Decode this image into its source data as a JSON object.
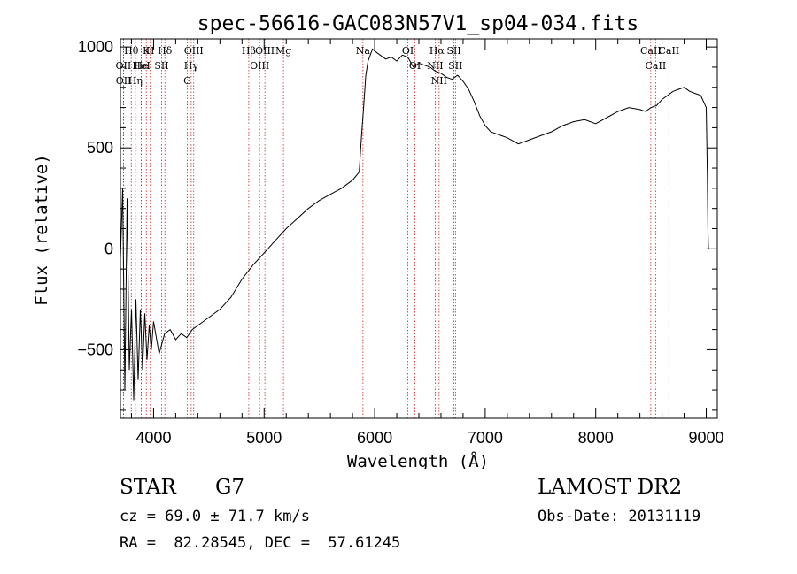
{
  "chart_data": {
    "type": "line",
    "title": "spec-56616-GAC083N57V1_sp04-034.fits",
    "xlabel": "Wavelength (Å)",
    "ylabel": "Flux (relative)",
    "xlim": [
      3700,
      9100
    ],
    "ylim": [
      -840,
      1040
    ],
    "xticks": [
      4000,
      5000,
      6000,
      7000,
      8000,
      9000
    ],
    "xtick_labels": [
      "4000",
      "5000",
      "6000",
      "7000",
      "8000",
      "9000"
    ],
    "yticks": [
      -500,
      0,
      500,
      1000
    ],
    "ytick_labels": [
      "−500",
      "0",
      "500",
      "1000"
    ],
    "grid": false,
    "series": [
      {
        "x": [
          3700,
          3720,
          3740,
          3760,
          3780,
          3800,
          3820,
          3840,
          3860,
          3880,
          3900,
          3920,
          3940,
          3960,
          3980,
          4000,
          4050,
          4100,
          4150,
          4200,
          4250,
          4300,
          4350,
          4400,
          4450,
          4500,
          4600,
          4700,
          4800,
          4900,
          5000,
          5100,
          5200,
          5300,
          5400,
          5500,
          5600,
          5700,
          5800,
          5860,
          5880,
          5900,
          5920,
          5940,
          5960,
          5980,
          6000,
          6050,
          6100,
          6150,
          6200,
          6250,
          6300,
          6350,
          6400,
          6450,
          6500,
          6550,
          6600,
          6650,
          6700,
          6750,
          6800,
          6850,
          6900,
          6950,
          7000,
          7050,
          7100,
          7150,
          7200,
          7300,
          7400,
          7500,
          7600,
          7700,
          7800,
          7900,
          8000,
          8100,
          8200,
          8300,
          8400,
          8450,
          8500,
          8550,
          8600,
          8650,
          8700,
          8750,
          8800,
          8850,
          8900,
          8950,
          9000,
          9010,
          9015,
          9020
        ],
        "y": [
          -50,
          300,
          -700,
          250,
          -600,
          -300,
          -750,
          -250,
          -650,
          -300,
          -600,
          -320,
          -550,
          -380,
          -500,
          -360,
          -520,
          -420,
          -400,
          -450,
          -420,
          -440,
          -400,
          -380,
          -360,
          -340,
          -300,
          -240,
          -150,
          -80,
          -20,
          40,
          100,
          150,
          200,
          240,
          270,
          300,
          340,
          380,
          550,
          700,
          860,
          930,
          960,
          990,
          980,
          960,
          940,
          950,
          930,
          960,
          950,
          900,
          920,
          910,
          900,
          880,
          870,
          850,
          840,
          860,
          830,
          790,
          730,
          660,
          610,
          580,
          570,
          560,
          550,
          520,
          540,
          560,
          580,
          610,
          630,
          640,
          620,
          650,
          680,
          700,
          690,
          680,
          700,
          710,
          740,
          760,
          780,
          790,
          800,
          780,
          770,
          760,
          700,
          350,
          100,
          0
        ]
      }
    ],
    "lines": [
      {
        "label": "Hθ",
        "x": 3798
      },
      {
        "label": "OII",
        "x": 3727
      },
      {
        "label": "OII",
        "x": 3729
      },
      {
        "label": "He",
        "x": 3889
      },
      {
        "label": "H",
        "x": 3970
      },
      {
        "label": "Hη",
        "x": 3835
      },
      {
        "label": "K",
        "x": 3934
      },
      {
        "label": "HeI",
        "x": 3889
      },
      {
        "label": "Hδ",
        "x": 4102
      },
      {
        "label": "SII",
        "x": 4072
      },
      {
        "label": "OIII",
        "x": 4363
      },
      {
        "label": "Hγ",
        "x": 4340
      },
      {
        "label": "G",
        "x": 4305
      },
      {
        "label": "Hβ",
        "x": 4861
      },
      {
        "label": "OIII",
        "x": 4959
      },
      {
        "label": "OIII",
        "x": 5007
      },
      {
        "label": "Mg",
        "x": 5175
      },
      {
        "label": "Na",
        "x": 5894
      },
      {
        "label": "OI",
        "x": 6300
      },
      {
        "label": "OI",
        "x": 6364
      },
      {
        "label": "Hα",
        "x": 6563
      },
      {
        "label": "NII",
        "x": 6548
      },
      {
        "label": "NII",
        "x": 6583
      },
      {
        "label": "SII",
        "x": 6717
      },
      {
        "label": "SII",
        "x": 6731
      },
      {
        "label": "CaII",
        "x": 8498
      },
      {
        "label": "CaII",
        "x": 8542
      },
      {
        "label": "CaII",
        "x": 8662
      }
    ]
  },
  "info": {
    "object_class": "STAR",
    "subclass": "G7",
    "cz": "cz = 69.0 ± 71.7 km/s",
    "coords": "RA =  82.28545, DEC =  57.61245",
    "survey": "LAMOST DR2",
    "obs_date": "Obs-Date: 20131119"
  },
  "colors": {
    "spectrum": "#000000",
    "marker_lines": "#cc2222",
    "axes": "#000000"
  }
}
